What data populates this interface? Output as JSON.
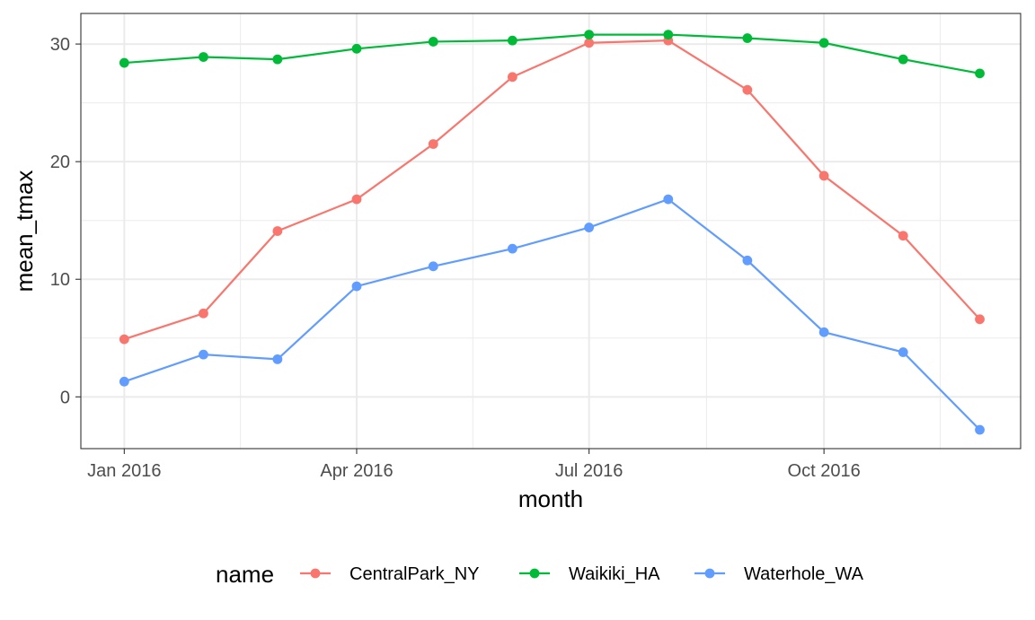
{
  "chart_data": {
    "type": "line",
    "xlabel": "month",
    "ylabel": "mean_tmax",
    "x_tick_labels": [
      "Jan 2016",
      "Apr 2016",
      "Jul 2016",
      "Oct 2016"
    ],
    "x_tick_dates": [
      "2016-01-01",
      "2016-04-01",
      "2016-07-01",
      "2016-10-01"
    ],
    "y_ticks": [
      0,
      10,
      20,
      30
    ],
    "ylim": [
      -4.4,
      32.6
    ],
    "xlim": [
      "2015-12-15",
      "2016-12-17"
    ],
    "grid": true,
    "legend_position": "bottom",
    "legend_title": "name",
    "x": [
      "2016-01-01",
      "2016-02-01",
      "2016-03-01",
      "2016-04-01",
      "2016-05-01",
      "2016-06-01",
      "2016-07-01",
      "2016-08-01",
      "2016-09-01",
      "2016-10-01",
      "2016-11-01",
      "2016-12-01"
    ],
    "series": [
      {
        "name": "CentralPark_NY",
        "color": "#F8766D",
        "values": [
          4.9,
          7.1,
          14.1,
          16.8,
          21.5,
          27.2,
          30.1,
          30.3,
          26.1,
          18.8,
          13.7,
          6.6
        ]
      },
      {
        "name": "Waikiki_HA",
        "color": "#00BA38",
        "values": [
          28.4,
          28.9,
          28.7,
          29.6,
          30.2,
          30.3,
          30.8,
          30.8,
          30.5,
          30.1,
          28.7,
          27.5
        ]
      },
      {
        "name": "Waterhole_WA",
        "color": "#619CFF",
        "values": [
          1.3,
          3.6,
          3.2,
          9.4,
          11.1,
          12.6,
          14.4,
          16.8,
          11.6,
          5.5,
          3.8,
          -2.8
        ]
      }
    ]
  }
}
